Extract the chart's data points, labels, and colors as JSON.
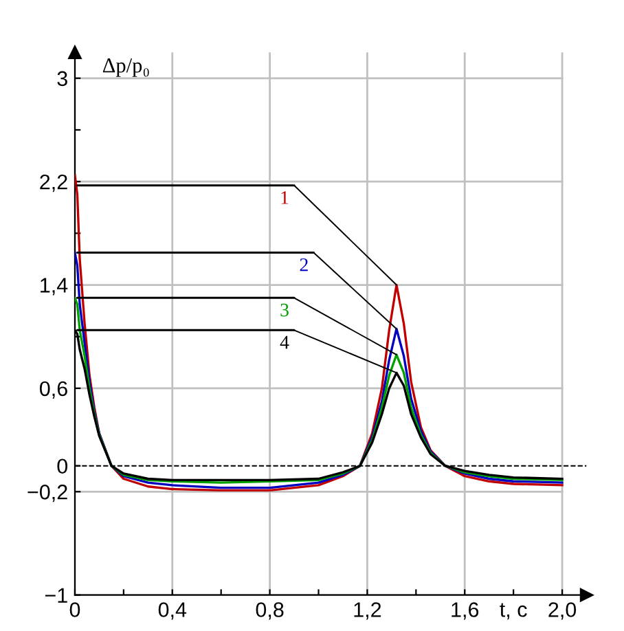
{
  "chart_data": {
    "type": "line",
    "xlabel": "t, c",
    "ylabel": "Δp/p₀",
    "x": [
      0,
      0.01,
      0.02,
      0.04,
      0.06,
      0.08,
      0.1,
      0.15,
      0.2,
      0.3,
      0.4,
      0.6,
      0.8,
      1.0,
      1.1,
      1.17,
      1.22,
      1.26,
      1.29,
      1.32,
      1.35,
      1.38,
      1.42,
      1.46,
      1.52,
      1.6,
      1.7,
      1.8,
      2.0
    ],
    "series": [
      {
        "name": "1",
        "color": "#c00000",
        "values": [
          2.25,
          2.1,
          1.6,
          1.1,
          0.7,
          0.45,
          0.25,
          0.0,
          -0.1,
          -0.16,
          -0.18,
          -0.19,
          -0.19,
          -0.15,
          -0.08,
          0.0,
          0.25,
          0.6,
          1.05,
          1.4,
          1.1,
          0.65,
          0.3,
          0.12,
          0.0,
          -0.08,
          -0.12,
          -0.14,
          -0.15
        ]
      },
      {
        "name": "2",
        "color": "#0000c0",
        "values": [
          1.65,
          1.55,
          1.25,
          0.95,
          0.65,
          0.42,
          0.25,
          0.0,
          -0.08,
          -0.13,
          -0.15,
          -0.17,
          -0.17,
          -0.13,
          -0.07,
          0.0,
          0.22,
          0.5,
          0.82,
          1.06,
          0.85,
          0.52,
          0.27,
          0.11,
          0.0,
          -0.06,
          -0.1,
          -0.12,
          -0.13
        ]
      },
      {
        "name": "3",
        "color": "#00a000",
        "values": [
          1.3,
          1.25,
          1.05,
          0.85,
          0.6,
          0.4,
          0.24,
          0.0,
          -0.07,
          -0.11,
          -0.12,
          -0.13,
          -0.12,
          -0.11,
          -0.06,
          0.0,
          0.2,
          0.45,
          0.7,
          0.86,
          0.72,
          0.45,
          0.24,
          0.1,
          0.0,
          -0.05,
          -0.08,
          -0.1,
          -0.11
        ]
      },
      {
        "name": "4",
        "color": "#000000",
        "values": [
          1.05,
          1.02,
          0.9,
          0.75,
          0.55,
          0.38,
          0.23,
          0.0,
          -0.06,
          -0.1,
          -0.11,
          -0.11,
          -0.11,
          -0.1,
          -0.05,
          0.0,
          0.18,
          0.4,
          0.6,
          0.72,
          0.62,
          0.4,
          0.22,
          0.09,
          0.0,
          -0.04,
          -0.07,
          -0.09,
          -0.1
        ]
      }
    ],
    "xlim": [
      0,
      2.1
    ],
    "ylim": [
      -1,
      3.2
    ],
    "xticks": [
      0,
      {
        "value": 0.2,
        "label": null
      },
      {
        "value": 0.4,
        "label": "0,4"
      },
      {
        "value": 0.6,
        "label": null
      },
      {
        "value": 0.8,
        "label": "0,8"
      },
      {
        "value": 1.0,
        "label": null
      },
      {
        "value": 1.2,
        "label": "1,2"
      },
      {
        "value": 1.4,
        "label": null
      },
      {
        "value": 1.6,
        "label": "1,6"
      },
      {
        "value": 1.8,
        "label": null
      },
      {
        "value": 2.0,
        "label": "2,0"
      }
    ],
    "yticks": [
      {
        "value": -1,
        "label": "−1"
      },
      {
        "value": -0.2,
        "label": "−0,2"
      },
      0,
      {
        "value": 0.6,
        "label": "0,6"
      },
      {
        "value": 1.0,
        "label": null
      },
      {
        "value": 1.4,
        "label": "1,4"
      },
      {
        "value": 1.8,
        "label": null
      },
      {
        "value": 2.2,
        "label": "2,2"
      },
      {
        "value": 2.6,
        "label": null
      },
      3
    ],
    "ref_lines": [
      {
        "axis": "y",
        "value": 0,
        "label": null,
        "color": "#000000",
        "line_style": "dashed"
      }
    ],
    "grid": true,
    "legend": false,
    "marker": "none",
    "line_style": "solid"
  }
}
